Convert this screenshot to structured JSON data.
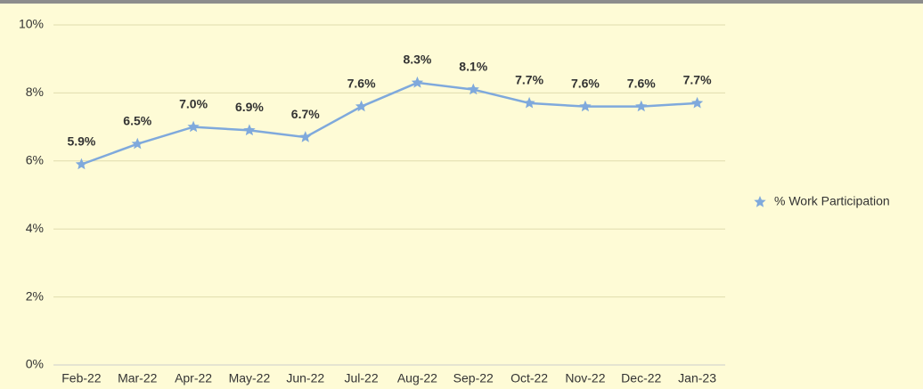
{
  "chart_data": {
    "type": "line",
    "categories": [
      "Feb-22",
      "Mar-22",
      "Apr-22",
      "May-22",
      "Jun-22",
      "Jul-22",
      "Aug-22",
      "Sep-22",
      "Oct-22",
      "Nov-22",
      "Dec-22",
      "Jan-23"
    ],
    "series": [
      {
        "name": "% Work Participation",
        "color": "#7fa9dc",
        "values": [
          5.9,
          6.5,
          7.0,
          6.9,
          6.7,
          7.6,
          8.3,
          8.1,
          7.7,
          7.6,
          7.6,
          7.7
        ],
        "value_labels": [
          "5.9%",
          "6.5%",
          "7.0%",
          "6.9%",
          "6.7%",
          "7.6%",
          "8.3%",
          "8.1%",
          "7.7%",
          "7.6%",
          "7.6%",
          "7.7%"
        ]
      }
    ],
    "ylim": [
      0,
      10
    ],
    "yticks": [
      {
        "value": 0,
        "label": "0%"
      },
      {
        "value": 2,
        "label": "2%"
      },
      {
        "value": 4,
        "label": "4%"
      },
      {
        "value": 6,
        "label": "6%"
      },
      {
        "value": 8,
        "label": "8%"
      },
      {
        "value": 10,
        "label": "10%"
      }
    ],
    "grid": true,
    "legend": "right"
  }
}
